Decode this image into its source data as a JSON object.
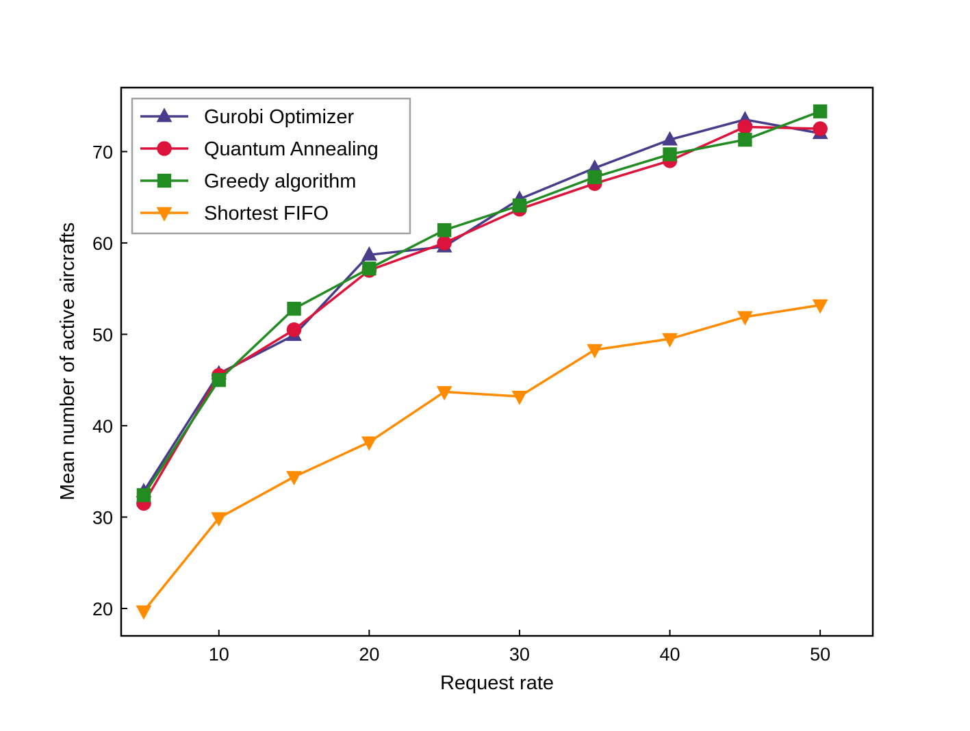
{
  "chart_data": {
    "type": "line",
    "title": "",
    "xlabel": "Request rate",
    "ylabel": "Mean number of active aircrafts",
    "x": [
      5,
      10,
      15,
      20,
      25,
      30,
      35,
      40,
      45,
      50
    ],
    "xlim": [
      3.5,
      53.5
    ],
    "ylim": [
      17,
      77
    ],
    "xticks": [
      10,
      20,
      30,
      40,
      50
    ],
    "yticks": [
      20,
      30,
      40,
      50,
      60,
      70
    ],
    "xtick_labels": [
      "10",
      "20",
      "30",
      "40",
      "50"
    ],
    "ytick_labels": [
      "20",
      "30",
      "40",
      "50",
      "60",
      "70"
    ],
    "grid": false,
    "legend_position": "top-left",
    "series": [
      {
        "name": "Gurobi Optimizer",
        "color": "#483d8b",
        "marker": "triangle-up",
        "values": [
          32.8,
          45.7,
          49.9,
          58.7,
          59.6,
          64.8,
          68.2,
          71.3,
          73.5,
          72.0
        ]
      },
      {
        "name": "Quantum Annealing",
        "color": "#dc143c",
        "marker": "circle",
        "values": [
          31.5,
          45.5,
          50.5,
          57.0,
          60.0,
          63.7,
          66.5,
          69.0,
          72.7,
          72.5
        ]
      },
      {
        "name": "Greedy algorithm",
        "color": "#228b22",
        "marker": "square",
        "values": [
          32.4,
          45.0,
          52.8,
          57.2,
          61.4,
          64.1,
          67.2,
          69.7,
          71.3,
          74.4
        ]
      },
      {
        "name": "Shortest FIFO",
        "color": "#ff8c00",
        "marker": "triangle-down",
        "values": [
          19.7,
          29.9,
          34.4,
          38.2,
          43.7,
          43.2,
          48.3,
          49.5,
          51.9,
          53.2
        ]
      }
    ]
  }
}
